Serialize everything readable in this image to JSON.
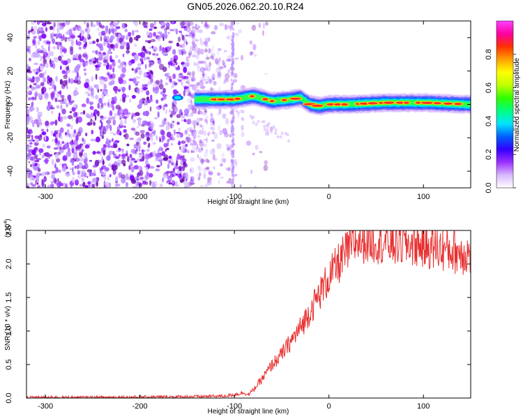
{
  "title": "GN05.2026.062.20.10.R24",
  "chart_data": [
    {
      "type": "heatmap",
      "name": "spectrogram",
      "xlabel": "Height of straight line (km)",
      "ylabel": "Frequency (Hz)",
      "xlim": [
        -320,
        150
      ],
      "ylim": [
        -50,
        50
      ],
      "xticks": [
        -300,
        -200,
        -100,
        0,
        100
      ],
      "yticks": [
        -40,
        -20,
        0,
        20,
        40
      ],
      "colorbar": {
        "label": "Normalized spectral amplitude",
        "range": [
          0,
          1
        ],
        "ticks": [
          "0.0",
          "0.2",
          "0.4",
          "0.6",
          "0.8"
        ],
        "tick_values": [
          0,
          0.2,
          0.4,
          0.6,
          0.8
        ],
        "colors": [
          "#ffffff",
          "#d8b8ff",
          "#9b30ff",
          "#3300ff",
          "#0060ff",
          "#00e5ff",
          "#00ff80",
          "#30ff00",
          "#c0ff00",
          "#ffff00",
          "#ffa000",
          "#ff3000",
          "#ff00a0",
          "#ff40ff"
        ]
      },
      "signal_band": {
        "start_x": -160,
        "end_x": 150,
        "center_path": [
          [
            -160,
            4
          ],
          [
            -140,
            3
          ],
          [
            -100,
            3
          ],
          [
            -80,
            5
          ],
          [
            -60,
            2
          ],
          [
            -40,
            3
          ],
          [
            -30,
            4
          ],
          [
            -20,
            0
          ],
          [
            -10,
            -1
          ],
          [
            0,
            0
          ],
          [
            20,
            0
          ],
          [
            60,
            1
          ],
          [
            100,
            1
          ],
          [
            150,
            0
          ]
        ]
      },
      "noise_region": [
        -320,
        -100
      ]
    },
    {
      "type": "line",
      "name": "snr",
      "xlabel": "Height of straight line (km)",
      "ylabel": "SNR (10 * v/v)",
      "exponent_label": "(x10",
      "exponent_power": "4",
      "exponent_close": ")",
      "xlim": [
        -320,
        150
      ],
      "ylim": [
        0,
        2.5
      ],
      "xticks": [
        -300,
        -200,
        -100,
        0,
        100
      ],
      "yticks": [
        "0.0",
        "0.5",
        "1.0",
        "1.5",
        "2.0",
        "2.5"
      ],
      "ytick_values": [
        0,
        0.5,
        1.0,
        1.5,
        2.0,
        2.5
      ],
      "color": "#e83030",
      "series": [
        {
          "name": "SNR",
          "x": [
            -320,
            -250,
            -150,
            -110,
            -100,
            -90,
            -85,
            -80,
            -70,
            -60,
            -50,
            -40,
            -30,
            -20,
            -10,
            0,
            10,
            20,
            30,
            50,
            70,
            90,
            110,
            130,
            150
          ],
          "y": [
            0.01,
            0.01,
            0.02,
            0.03,
            0.05,
            0.08,
            0.05,
            0.12,
            0.3,
            0.5,
            0.65,
            0.85,
            1.05,
            1.3,
            1.55,
            1.8,
            2.0,
            2.2,
            2.35,
            2.35,
            2.3,
            2.3,
            2.25,
            2.2,
            2.15
          ]
        }
      ]
    }
  ]
}
